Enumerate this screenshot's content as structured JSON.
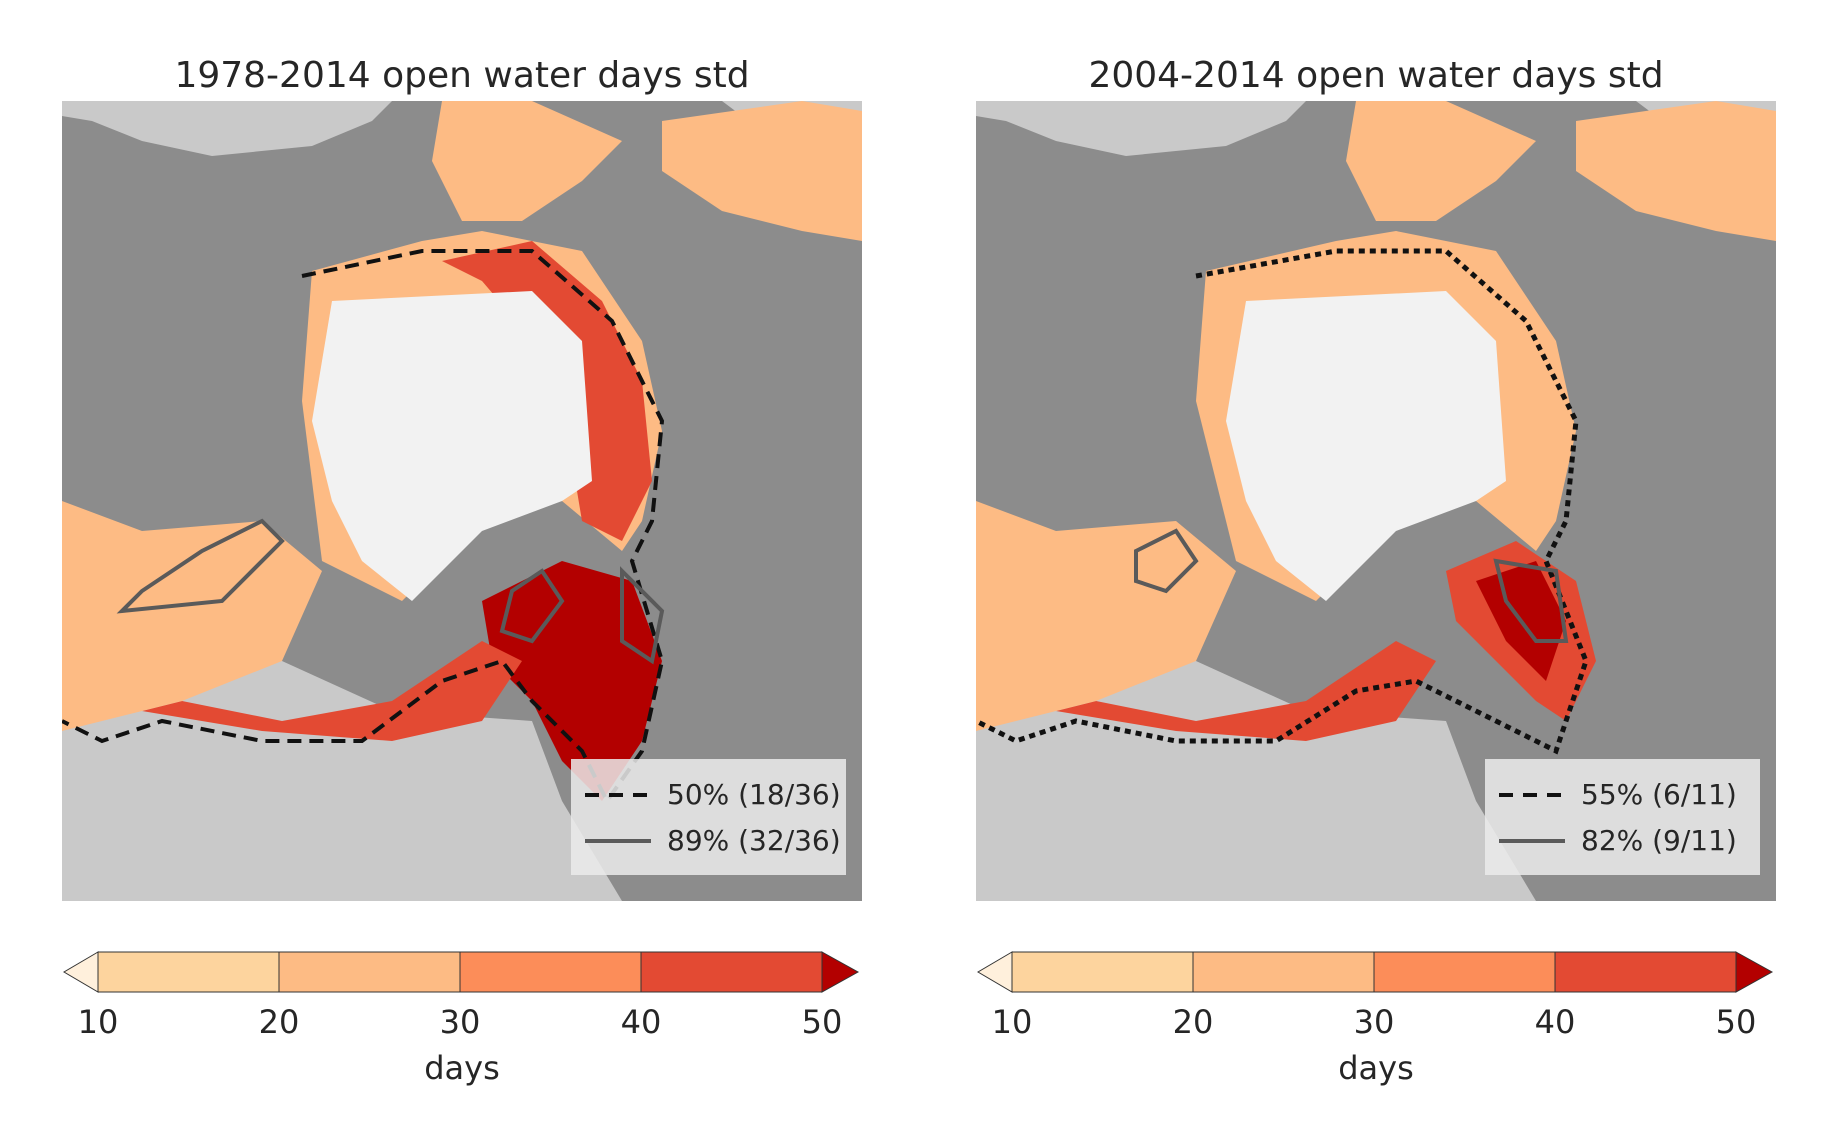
{
  "panels": [
    {
      "title": "1978-2014 open water days std",
      "legend": [
        {
          "style": "dashed",
          "color": "#111111",
          "label": "50% (18/36)"
        },
        {
          "style": "solid",
          "color": "#5a5a5a",
          "label": "89% (32/36)"
        }
      ]
    },
    {
      "title": "2004-2014 open water days std",
      "legend": [
        {
          "style": "dashed",
          "color": "#111111",
          "label": "55% (6/11)"
        },
        {
          "style": "solid",
          "color": "#5a5a5a",
          "label": "82% (9/11)"
        }
      ]
    }
  ],
  "colorbar": {
    "label": "days",
    "ticks": [
      "10",
      "20",
      "30",
      "40",
      "50"
    ],
    "under_color": "#fff0dc",
    "bins": [
      "#fdd49e",
      "#fdbb84",
      "#fc8d59",
      "#e34a33"
    ],
    "over_color": "#b30000"
  },
  "map_colors": {
    "land_dark": "#8c8c8c",
    "land_light": "#c9c9c9",
    "ice": "#f2f2f2"
  }
}
